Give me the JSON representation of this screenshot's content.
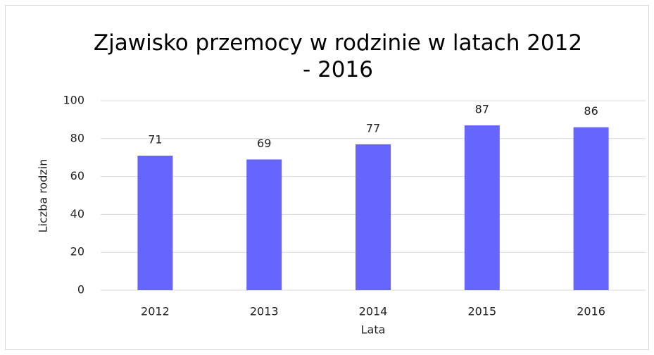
{
  "chart_data": {
    "type": "bar",
    "title": "Zjawisko przemocy w rodzinie w latach 2012 - 2016",
    "x_label": "Lata",
    "y_label": "Liczba rodzin",
    "categories": [
      "2012",
      "2013",
      "2014",
      "2015",
      "2016"
    ],
    "values": [
      71,
      69,
      77,
      87,
      86
    ],
    "color": "#6666ff",
    "ylim": [
      0,
      100
    ],
    "yticks": [
      0,
      20,
      40,
      60,
      80,
      100
    ],
    "grid": true
  }
}
